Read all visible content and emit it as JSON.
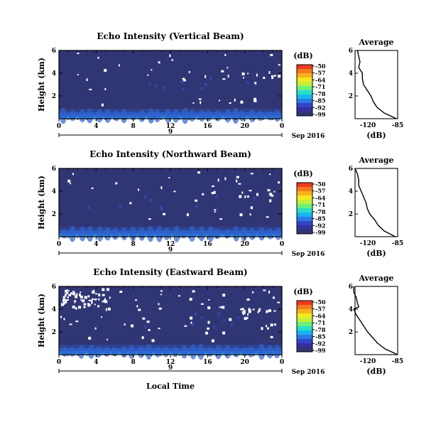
{
  "x_axis": {
    "ticks": [
      "0",
      "4",
      "8",
      "12",
      "16",
      "20",
      "0"
    ],
    "day_label": "9",
    "month_label": "Sep 2016",
    "xlabel": "Local Time",
    "range_hours": [
      0,
      24
    ]
  },
  "y_axis": {
    "label": "Height (km)",
    "ticks": [
      "2",
      "4",
      "6"
    ],
    "range": [
      0,
      6
    ]
  },
  "colorbar": {
    "unit_label": "(dB)",
    "ticks": [
      "-50",
      "-57",
      "-64",
      "-71",
      "-78",
      "-85",
      "-92",
      "-99"
    ],
    "colors": [
      "#f03a1e",
      "#f47a1e",
      "#f8b21e",
      "#f2e81e",
      "#c2f03a",
      "#6cf07a",
      "#28e0c6",
      "#1ab4f0",
      "#2a7ae6",
      "#3244c8",
      "#34309e",
      "#303574"
    ]
  },
  "average_panel": {
    "title": "Average",
    "xlabel": "(dB)",
    "yticks": [
      "2",
      "4",
      "6"
    ]
  },
  "colors": {
    "background_field": "#303574",
    "near_surface_band": "#2f6fd8",
    "data_gap": "#ffffff"
  },
  "panels": [
    {
      "title": "Echo Intensity (Vertical Beam)",
      "avg_xticks": [
        "-120",
        "-85"
      ]
    },
    {
      "title": "Echo Intensity (Northward Beam)",
      "avg_xticks": [
        "-120",
        "-85"
      ]
    },
    {
      "title": "Echo Intensity (Eastward Beam)",
      "avg_xticks": [
        "-120",
        "-85"
      ]
    }
  ],
  "chart_data": [
    {
      "type": "heatmap",
      "title": "Echo Intensity (Vertical Beam)",
      "xlabel": "",
      "ylabel": "Height (km)",
      "xlim_hours": [
        0,
        24
      ],
      "ylim_km": [
        0,
        6
      ],
      "color_scale_db": [
        -99,
        -50
      ],
      "typical_value_db": -97,
      "near_surface_value_db": -90,
      "average_profile": {
        "xlim_db": [
          -120,
          -85
        ],
        "height_km": [
          6.0,
          5.5,
          5.0,
          4.5,
          4.0,
          3.5,
          3.0,
          2.5,
          2.0,
          1.5,
          1.0,
          0.5,
          0.0
        ],
        "value_db": [
          -118,
          -117,
          -116,
          -117,
          -114,
          -114,
          -113,
          -110,
          -107,
          -105,
          -102,
          -96,
          -86
        ]
      }
    },
    {
      "type": "heatmap",
      "title": "Echo Intensity (Northward Beam)",
      "xlabel": "",
      "ylabel": "Height (km)",
      "xlim_hours": [
        0,
        24
      ],
      "ylim_km": [
        0,
        6
      ],
      "color_scale_db": [
        -99,
        -50
      ],
      "typical_value_db": -97,
      "near_surface_value_db": -90,
      "average_profile": {
        "xlim_db": [
          -120,
          -85
        ],
        "height_km": [
          6.0,
          5.5,
          5.0,
          4.5,
          4.0,
          3.5,
          3.0,
          2.5,
          2.0,
          1.5,
          1.0,
          0.5,
          0.0
        ],
        "value_db": [
          -120,
          -118,
          -117,
          -117,
          -115,
          -113,
          -111,
          -110,
          -108,
          -104,
          -101,
          -96,
          -87
        ]
      }
    },
    {
      "type": "heatmap",
      "title": "Echo Intensity (Eastward Beam)",
      "xlabel": "Local Time",
      "ylabel": "Height (km)",
      "xlim_hours": [
        0,
        24
      ],
      "ylim_km": [
        0,
        6
      ],
      "color_scale_db": [
        -99,
        -50
      ],
      "typical_value_db": -97,
      "near_surface_value_db": -90,
      "average_profile": {
        "xlim_db": [
          -120,
          -86
        ],
        "height_km": [
          6.0,
          5.5,
          5.0,
          4.5,
          4.2,
          4.0,
          3.5,
          3.0,
          2.5,
          2.0,
          1.5,
          1.0,
          0.5,
          0.0
        ],
        "value_db": [
          -121,
          -121,
          -119,
          -118,
          -117,
          -121,
          -119,
          -116,
          -113,
          -110,
          -106,
          -102,
          -96,
          -86
        ]
      }
    }
  ]
}
